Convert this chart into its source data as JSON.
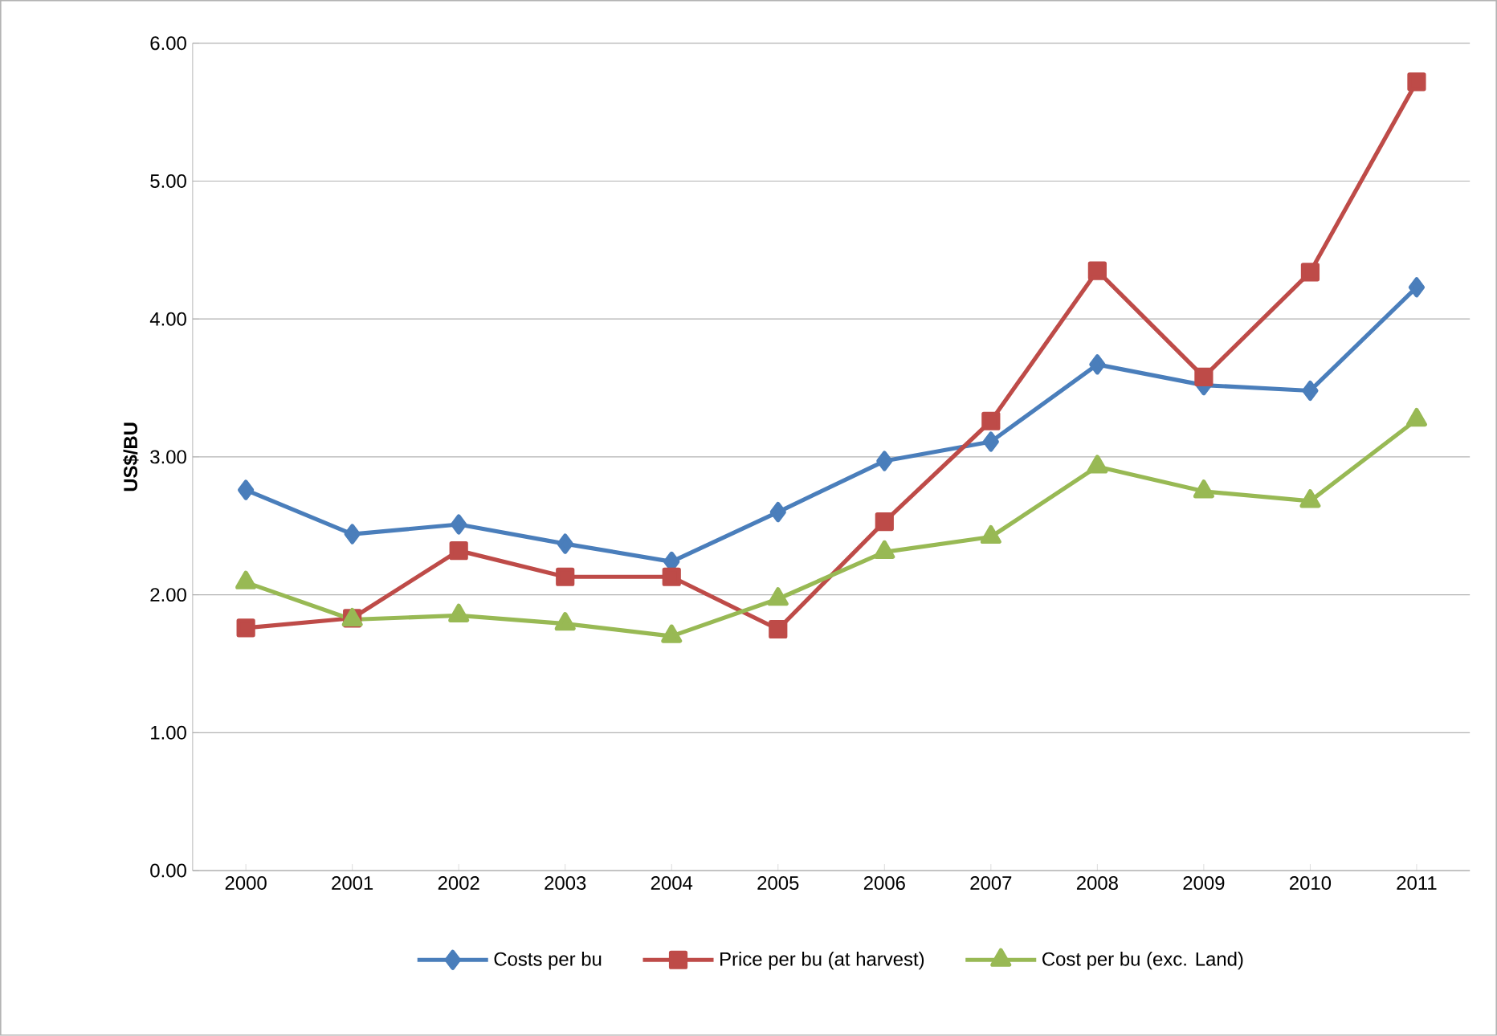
{
  "chart_data": {
    "type": "line",
    "ylabel": "US$/BU",
    "categories": [
      "2000",
      "2001",
      "2002",
      "2003",
      "2004",
      "2005",
      "2006",
      "2007",
      "2008",
      "2009",
      "2010",
      "2011"
    ],
    "series": [
      {
        "name": "Costs per bu",
        "color": "#4a7ebb",
        "marker": "diamond",
        "values": [
          2.76,
          2.44,
          2.51,
          2.37,
          2.24,
          2.6,
          2.97,
          3.11,
          3.67,
          3.52,
          3.48,
          4.23
        ]
      },
      {
        "name": "Price per bu (at harvest)",
        "color": "#be4b48",
        "marker": "square",
        "values": [
          1.76,
          1.83,
          2.32,
          2.13,
          2.13,
          1.75,
          2.53,
          3.26,
          4.35,
          3.58,
          4.34,
          5.72
        ]
      },
      {
        "name": "Cost per bu (exc. Land)",
        "color": "#98b954",
        "marker": "triangle",
        "values": [
          2.09,
          1.82,
          1.85,
          1.79,
          1.7,
          1.97,
          2.31,
          2.42,
          2.93,
          2.75,
          2.68,
          3.27
        ]
      }
    ],
    "ylim": [
      0,
      6
    ],
    "yticks": [
      {
        "value": 0,
        "label": "0.00"
      },
      {
        "value": 1,
        "label": "1.00"
      },
      {
        "value": 2,
        "label": "2.00"
      },
      {
        "value": 3,
        "label": "3.00"
      },
      {
        "value": 4,
        "label": "4.00"
      },
      {
        "value": 5,
        "label": "5.00"
      },
      {
        "value": 6,
        "label": "6.00"
      }
    ],
    "grid": "y",
    "legend": "bottom",
    "line_style": "solid"
  }
}
